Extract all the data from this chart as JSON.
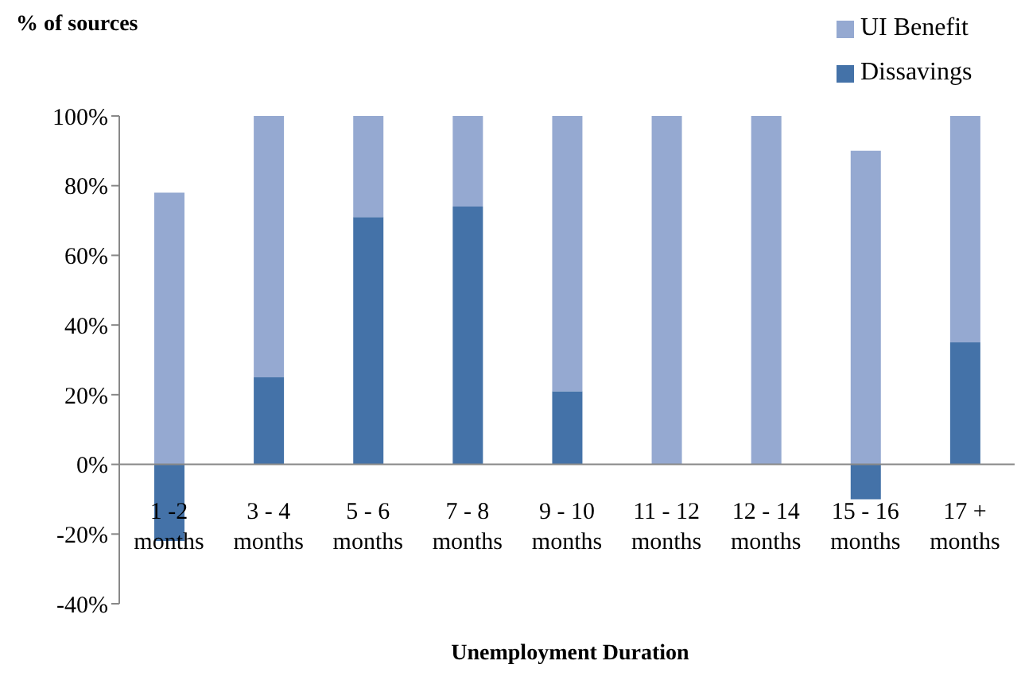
{
  "chart_data": {
    "type": "bar",
    "title": "% of sources",
    "xlabel": "Unemployment Duration",
    "categories": [
      "1 -2 months",
      "3 - 4 months",
      "5 - 6 months",
      "7 - 8 months",
      "9 - 10 months",
      "11 - 12 months",
      "12 - 14 months",
      "15 - 16 months",
      "17 + months"
    ],
    "stacked": true,
    "series": [
      {
        "name": "Dissavings",
        "color": "#4472a8",
        "values": [
          -22,
          25,
          71,
          74,
          21,
          0,
          0,
          -10,
          35
        ]
      },
      {
        "name": "UI Benefit",
        "color": "#95a9d1",
        "values": [
          78,
          75,
          29,
          26,
          79,
          100,
          100,
          90,
          65
        ]
      }
    ],
    "ylim": [
      -40,
      100
    ],
    "yticks": [
      {
        "value": -40,
        "label": "-40%"
      },
      {
        "value": -20,
        "label": "-20%"
      },
      {
        "value": 0,
        "label": "0%"
      },
      {
        "value": 20,
        "label": "20%"
      },
      {
        "value": 40,
        "label": "40%"
      },
      {
        "value": 60,
        "label": "60%"
      },
      {
        "value": 80,
        "label": "80%"
      },
      {
        "value": 100,
        "label": "100%"
      }
    ],
    "grid": false,
    "legend": "top right"
  }
}
